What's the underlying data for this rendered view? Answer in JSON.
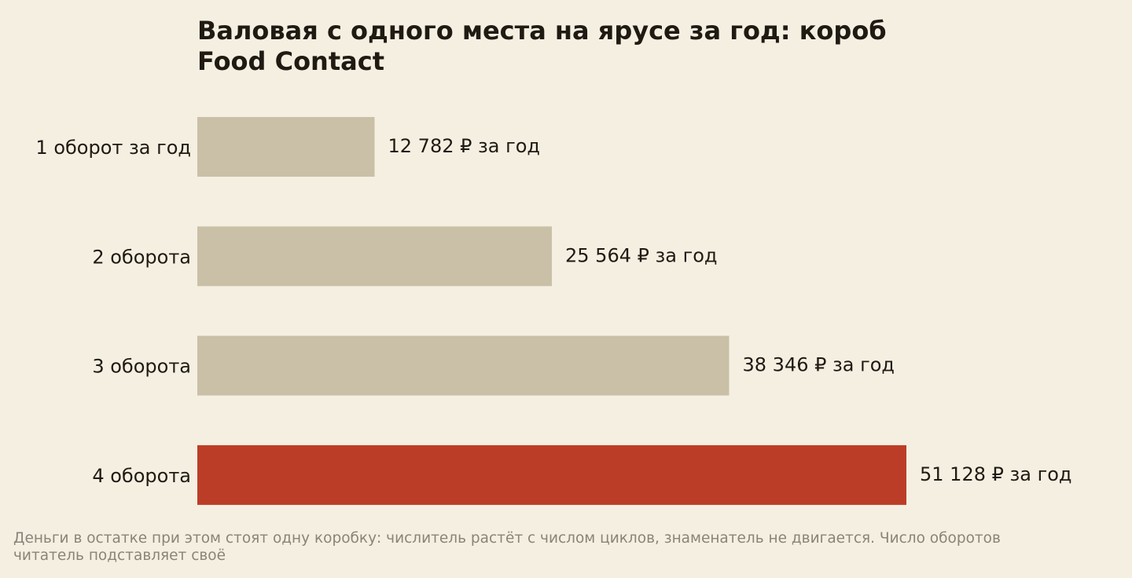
{
  "title_lines": [
    "Валовая с одного места на ярусе за год: короб",
    "Food Contact"
  ],
  "chart_data": {
    "type": "bar",
    "orientation": "horizontal",
    "categories": [
      "1 оборот за год",
      "2 оборота",
      "3 оборота",
      "4 оборота"
    ],
    "values": [
      12782,
      25564,
      38346,
      51128
    ],
    "value_labels": [
      "12 782 ₽ за год",
      "25 564 ₽ за год",
      "38 346 ₽ за год",
      "51 128 ₽ за год"
    ],
    "unit": "₽ за год",
    "highlight_index": 3,
    "xlim": [
      0,
      51128
    ],
    "grid": false,
    "legend": "none"
  },
  "colors": {
    "background": "#f5efe2",
    "bar": "#c9c0a7",
    "bar_highlight": "#bc3d27",
    "text": "#1f1a12",
    "footnote": "#8a8478"
  },
  "footnote_lines": [
    "Деньги в остатке при этом стоят одну коробку: числитель растёт с числом циклов, знаменатель не двигается. Число оборотов",
    "читатель подставляет своё"
  ]
}
